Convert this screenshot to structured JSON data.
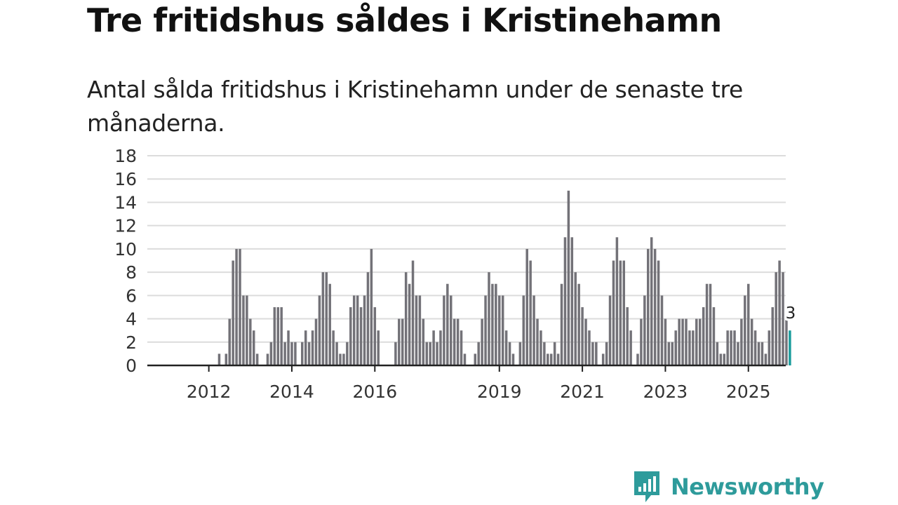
{
  "title": "Tre fritidshus såldes i Kristinehamn",
  "subtitle": "Antal sålda fritidshus i Kristinehamn under de senaste tre månaderna.",
  "brand": {
    "name": "Newsworthy",
    "icon": "newsworthy-logo-icon",
    "color": "#2e9b9b"
  },
  "colors": {
    "bar": "#737278",
    "highlight": "#1a9c9c",
    "grid": "#dcdcdc",
    "axis": "#222222"
  },
  "chart_data": {
    "type": "bar",
    "title": "Tre fritidshus såldes i Kristinehamn",
    "xlabel": "",
    "ylabel": "",
    "ylim": [
      0,
      18
    ],
    "yticks": [
      0,
      2,
      4,
      6,
      8,
      10,
      12,
      14,
      16,
      18
    ],
    "xticks": [
      "2012",
      "2014",
      "2016",
      "2019",
      "2021",
      "2023",
      "2025"
    ],
    "start": "2011-01",
    "frequency": "monthly",
    "values": [
      0,
      0,
      0,
      0,
      0,
      0,
      0,
      0,
      0,
      0,
      0,
      0,
      0,
      0,
      0,
      1,
      0,
      1,
      4,
      9,
      10,
      10,
      6,
      6,
      4,
      3,
      1,
      0,
      0,
      1,
      2,
      5,
      5,
      5,
      2,
      3,
      2,
      2,
      0,
      2,
      3,
      2,
      3,
      4,
      6,
      8,
      8,
      7,
      3,
      2,
      1,
      1,
      2,
      5,
      6,
      6,
      5,
      6,
      8,
      10,
      5,
      3,
      0,
      0,
      0,
      0,
      2,
      4,
      4,
      8,
      7,
      9,
      6,
      6,
      4,
      2,
      2,
      3,
      2,
      3,
      6,
      7,
      6,
      4,
      4,
      3,
      1,
      0,
      0,
      1,
      2,
      4,
      6,
      8,
      7,
      7,
      6,
      6,
      3,
      2,
      1,
      0,
      2,
      6,
      10,
      9,
      6,
      4,
      3,
      2,
      1,
      1,
      2,
      1,
      7,
      11,
      15,
      11,
      8,
      7,
      5,
      4,
      3,
      2,
      2,
      0,
      1,
      2,
      6,
      9,
      11,
      9,
      9,
      5,
      3,
      0,
      1,
      4,
      6,
      10,
      11,
      10,
      9,
      6,
      4,
      2,
      2,
      3,
      4,
      4,
      4,
      3,
      3,
      4,
      4,
      5,
      7,
      7,
      5,
      2,
      1,
      1,
      3,
      3,
      3,
      2,
      4,
      6,
      7,
      4,
      3,
      2,
      2,
      1,
      3,
      5,
      8,
      9,
      8,
      4,
      3
    ],
    "annotation": {
      "label": "3",
      "value": 3,
      "target": "last"
    }
  }
}
